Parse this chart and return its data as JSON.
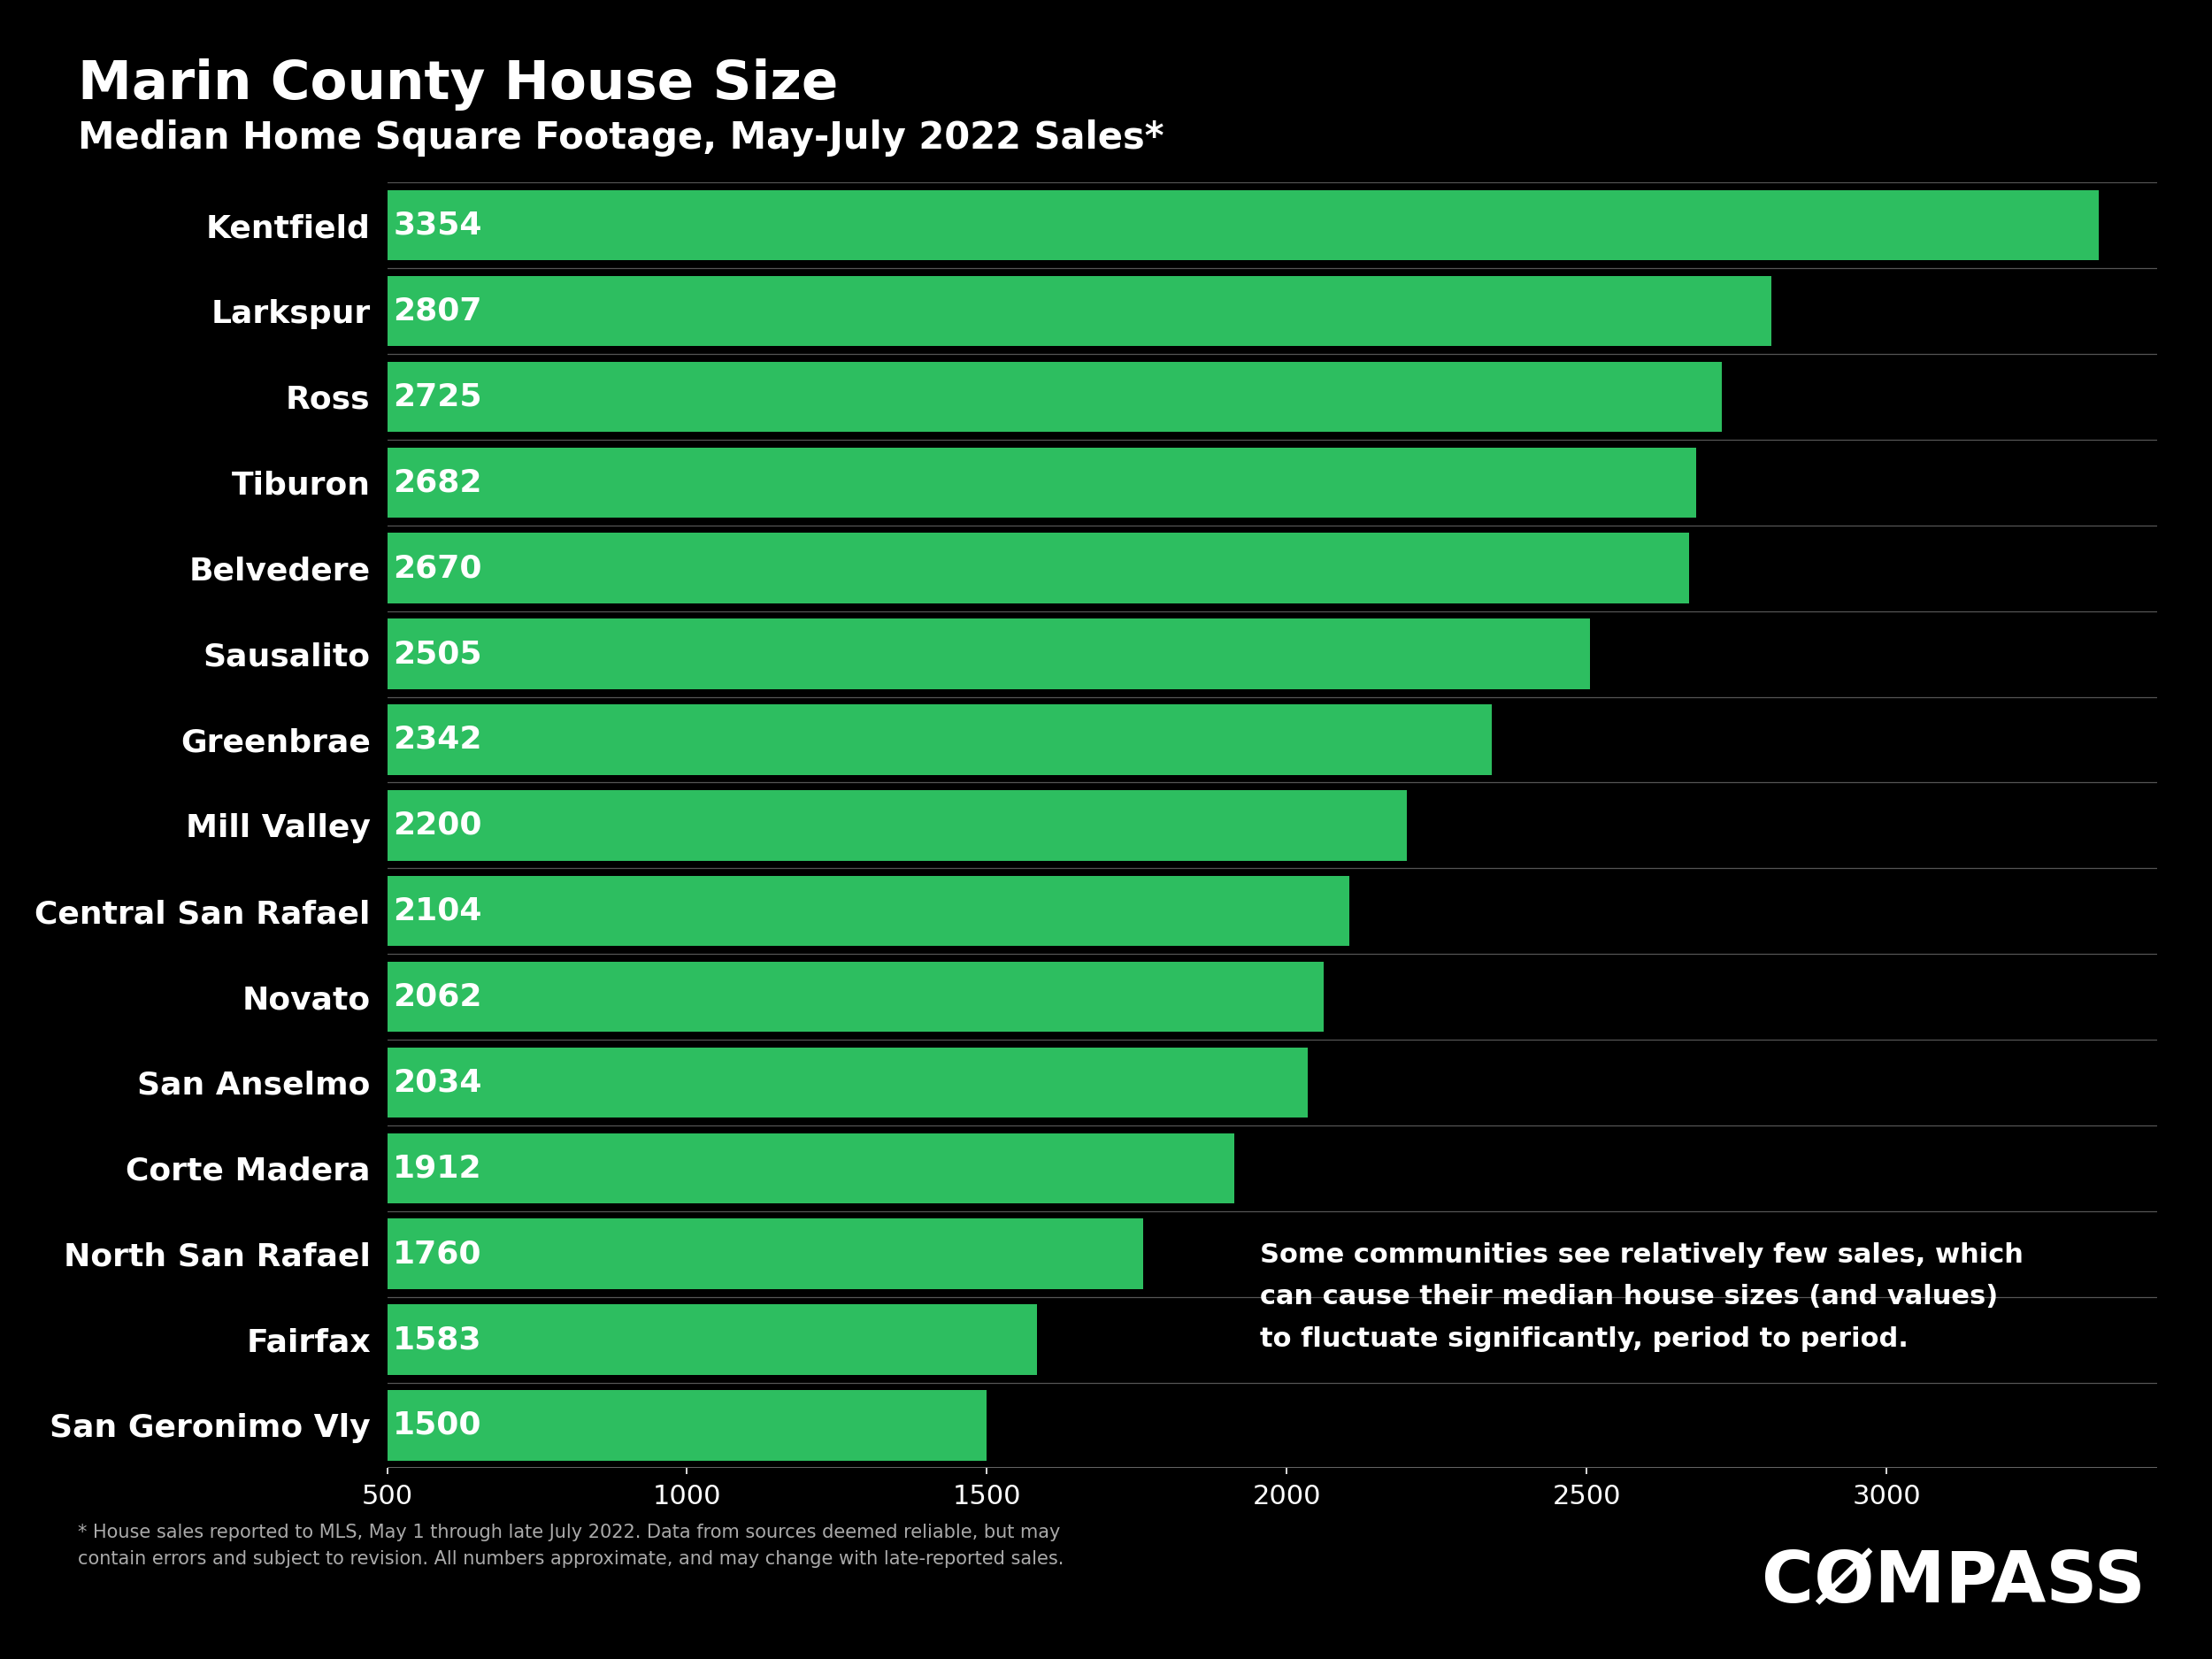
{
  "title": "Marin County House Size",
  "subtitle": "Median Home Square Footage, May-July 2022 Sales*",
  "categories": [
    "Kentfield",
    "Larkspur",
    "Ross",
    "Tiburon",
    "Belvedere",
    "Sausalito",
    "Greenbrae",
    "Mill Valley",
    "Central San Rafael",
    "Novato",
    "San Anselmo",
    "Corte Madera",
    "North San Rafael",
    "Fairfax",
    "San Geronimo Vly"
  ],
  "values": [
    3354,
    2807,
    2725,
    2682,
    2670,
    2505,
    2342,
    2200,
    2104,
    2062,
    2034,
    1912,
    1760,
    1583,
    1500
  ],
  "bar_color": "#2dbe60",
  "background_color": "#000000",
  "text_color": "#ffffff",
  "title_fontsize": 44,
  "subtitle_fontsize": 30,
  "bar_label_fontsize": 26,
  "category_fontsize": 26,
  "tick_fontsize": 22,
  "xlim": [
    500,
    3450
  ],
  "xticks": [
    500,
    1000,
    1500,
    2000,
    2500,
    3000
  ],
  "annotation_text": "Some communities see relatively few sales, which\ncan cause their median house sizes (and values)\nto fluctuate significantly, period to period.",
  "footnote": "* House sales reported to MLS, May 1 through late July 2022. Data from sources deemed reliable, but may\ncontain errors and subject to revision. All numbers approximate, and may change with late-reported sales.",
  "compass_text": "CØMPASS"
}
